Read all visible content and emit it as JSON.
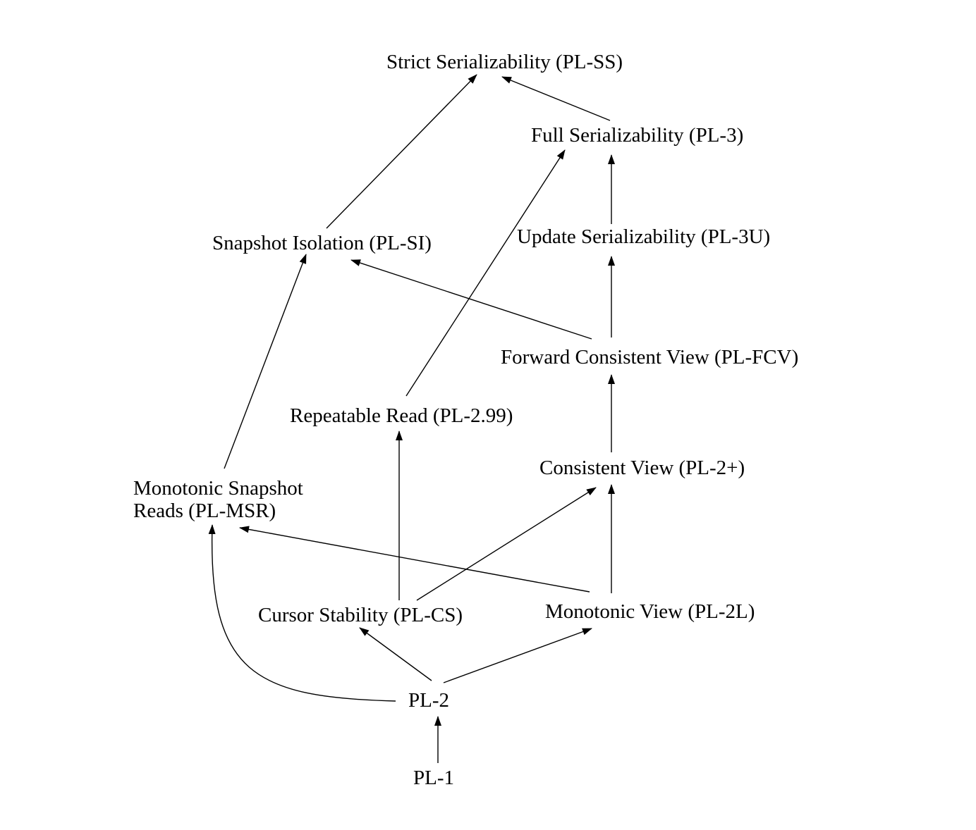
{
  "nodes": {
    "strict_serializability": "Strict Serializability (PL-SS)",
    "full_serializability": "Full Serializability (PL-3)",
    "snapshot_isolation": "Snapshot Isolation (PL-SI)",
    "update_serializability": "Update Serializability (PL-3U)",
    "forward_consistent_view": "Forward Consistent View (PL-FCV)",
    "repeatable_read": "Repeatable Read (PL-2.99)",
    "consistent_view": "Consistent View (PL-2+)",
    "monotonic_snapshot_reads_line1": "Monotonic Snapshot",
    "monotonic_snapshot_reads_line2": "Reads (PL-MSR)",
    "cursor_stability": "Cursor Stability (PL-CS)",
    "monotonic_view": "Monotonic View (PL-2L)",
    "pl2": "PL-2",
    "pl1": "PL-1"
  },
  "edges": [
    {
      "from": "pl1",
      "to": "pl2"
    },
    {
      "from": "pl2",
      "to": "monotonic_snapshot_reads"
    },
    {
      "from": "pl2",
      "to": "cursor_stability"
    },
    {
      "from": "pl2",
      "to": "monotonic_view"
    },
    {
      "from": "cursor_stability",
      "to": "repeatable_read"
    },
    {
      "from": "cursor_stability",
      "to": "consistent_view"
    },
    {
      "from": "monotonic_view",
      "to": "consistent_view"
    },
    {
      "from": "monotonic_view",
      "to": "monotonic_snapshot_reads"
    },
    {
      "from": "monotonic_snapshot_reads",
      "to": "snapshot_isolation"
    },
    {
      "from": "consistent_view",
      "to": "forward_consistent_view"
    },
    {
      "from": "forward_consistent_view",
      "to": "update_serializability"
    },
    {
      "from": "forward_consistent_view",
      "to": "snapshot_isolation"
    },
    {
      "from": "update_serializability",
      "to": "full_serializability"
    },
    {
      "from": "repeatable_read",
      "to": "full_serializability"
    },
    {
      "from": "snapshot_isolation",
      "to": "strict_serializability"
    },
    {
      "from": "full_serializability",
      "to": "strict_serializability"
    }
  ],
  "colors": {
    "line": "#000000",
    "background": "#ffffff"
  }
}
